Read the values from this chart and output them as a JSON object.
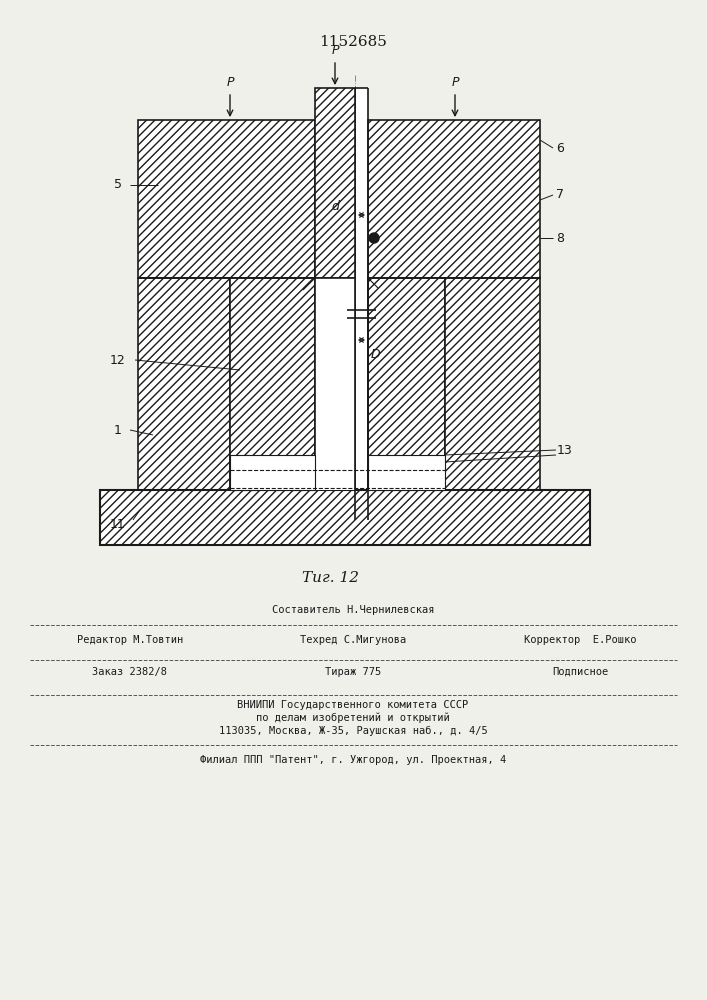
{
  "title": "1152685",
  "fig_label": "Τиг. 12",
  "bg_color": "#f0f0eb",
  "line_color": "#1a1a1a",
  "page_width": 7.07,
  "page_height": 10.0,
  "footer": {
    "line1_center": "Составитель Н.Чернилевская",
    "line2_left": "Редактор М.Товтин",
    "line2_center": "Техред С.Мигунова",
    "line2_right": "Корректор  Е.Рошко",
    "line3_left": "Заказ 2382/8",
    "line3_center": "Тираж 775",
    "line3_right": "Подписное",
    "line4": "ВНИИПИ Государственного комитета СССР",
    "line5": "по делам изобретений и открытий",
    "line6": "113035, Москва, Ж-35, Раушская наб., д. 4/5",
    "line7": "Филиал ППП \"Патент\", г. Ужгород, ул. Проектная, 4"
  }
}
